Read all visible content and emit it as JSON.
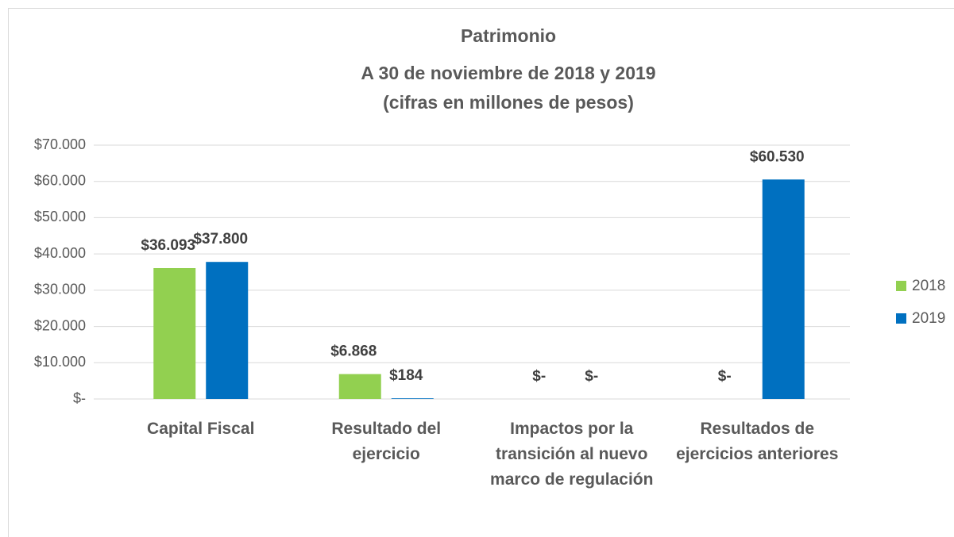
{
  "chart_data": {
    "type": "bar",
    "title": "Patrimonio",
    "subtitle": [
      "A 30 de noviembre de 2018 y 2019",
      "(cifras en millones de pesos)"
    ],
    "categories": [
      "Capital Fiscal",
      "Resultado del ejercicio",
      "Impactos por la transición al nuevo marco de regulación",
      "Resultados de ejercicios anteriores"
    ],
    "series": [
      {
        "name": "2018",
        "color": "#92d050",
        "values": [
          36093,
          6868,
          0,
          0
        ],
        "value_labels": [
          "$36.093",
          "$6.868",
          "$-",
          "$-"
        ]
      },
      {
        "name": "2019",
        "color": "#0070c0",
        "values": [
          37800,
          184,
          0,
          60530
        ],
        "value_labels": [
          "$37.800",
          "$184",
          "$-",
          "$60.530"
        ]
      }
    ],
    "ylim": [
      0,
      70000
    ],
    "yticks": [
      {
        "value": 0,
        "label": "$-"
      },
      {
        "value": 10000,
        "label": "$10.000"
      },
      {
        "value": 20000,
        "label": "$20.000"
      },
      {
        "value": 30000,
        "label": "$30.000"
      },
      {
        "value": 40000,
        "label": "$40.000"
      },
      {
        "value": 50000,
        "label": "$50.000"
      },
      {
        "value": 60000,
        "label": "$60.000"
      },
      {
        "value": 70000,
        "label": "$70.000"
      }
    ],
    "grid": true,
    "legend": "right"
  }
}
